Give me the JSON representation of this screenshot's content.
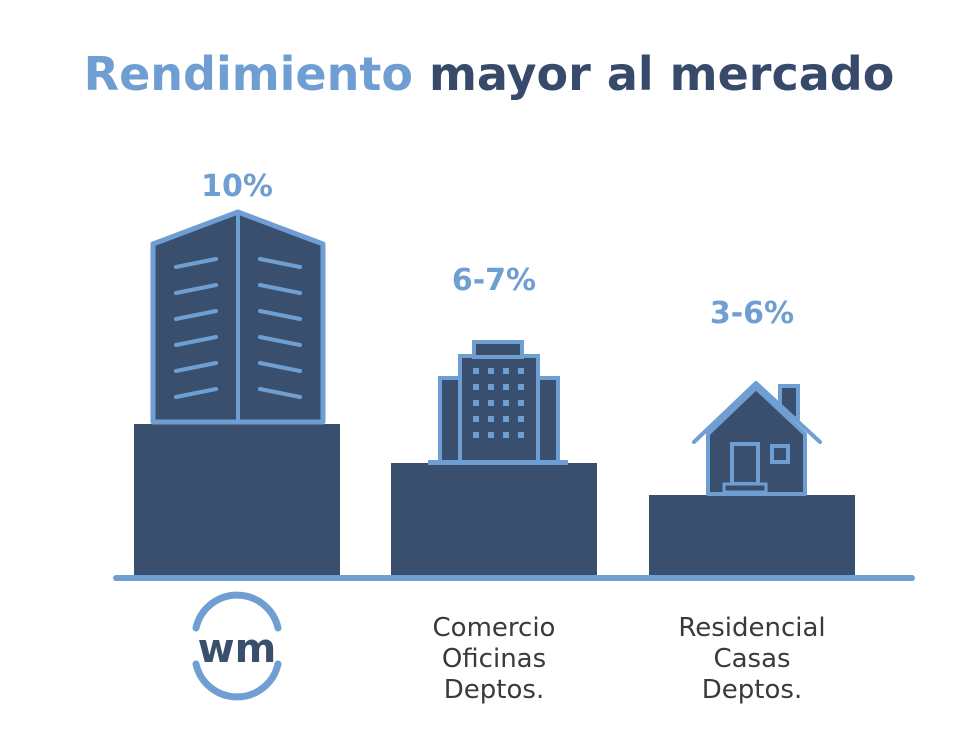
{
  "title": {
    "part1": "Rendimiento",
    "part2": "mayor al mercado"
  },
  "colors": {
    "accent": "#6f9fd2",
    "dark": "#3a4f6e",
    "text": "#3a3a3a"
  },
  "chart_data": {
    "type": "bar",
    "title": "Rendimiento mayor al mercado",
    "categories": [
      "wm",
      "Comercio Oficinas Deptos.",
      "Residencial Casas Deptos."
    ],
    "category_lines": [
      [],
      [
        "Comercio",
        "Oficinas",
        "Deptos."
      ],
      [
        "Residencial",
        "Casas",
        "Deptos."
      ]
    ],
    "values": [
      10,
      6.5,
      4.5
    ],
    "value_labels": [
      "10%",
      "6-7%",
      "3-6%"
    ],
    "icons": [
      "tower-building-icon",
      "office-building-icon",
      "house-icon"
    ],
    "first_category_logo": "wm",
    "ylim": [
      0,
      10
    ],
    "grid": false,
    "legend": "none"
  }
}
